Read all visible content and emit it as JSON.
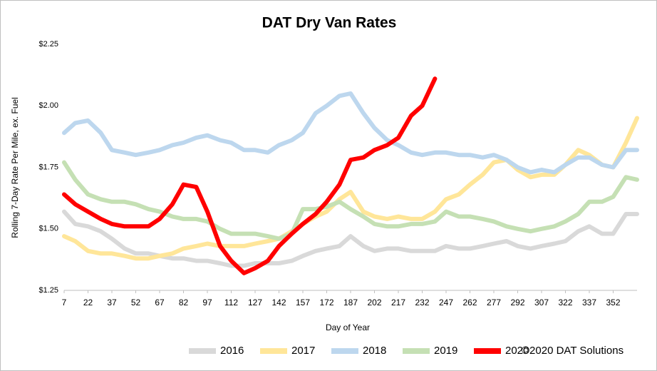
{
  "chart_data": {
    "type": "line",
    "title": "DAT Dry Van Rates",
    "x_label": "Day of Year",
    "y_label": "Rolling 7-Day Rate Per Mile, ex. Fuel",
    "copyright": "©2020 DAT Solutions",
    "xlim": [
      7,
      367
    ],
    "ylim": [
      1.25,
      2.25
    ],
    "xticks": [
      7,
      22,
      37,
      52,
      67,
      82,
      97,
      112,
      127,
      142,
      157,
      172,
      187,
      202,
      217,
      232,
      247,
      262,
      277,
      292,
      307,
      322,
      337,
      352
    ],
    "yticks": [
      {
        "value": 1.25,
        "label": "$1.25"
      },
      {
        "value": 1.5,
        "label": "$1.50"
      },
      {
        "value": 1.75,
        "label": "$1.75"
      },
      {
        "value": 2,
        "label": "$2.00"
      },
      {
        "value": 2.25,
        "label": "$2.25"
      }
    ],
    "grid": false,
    "x": [
      7,
      14,
      22,
      30,
      37,
      45,
      52,
      60,
      67,
      75,
      82,
      90,
      97,
      105,
      112,
      120,
      127,
      135,
      142,
      150,
      157,
      165,
      172,
      180,
      187,
      195,
      202,
      210,
      217,
      225,
      232,
      240,
      247,
      255,
      262,
      270,
      277,
      285,
      292,
      300,
      307,
      315,
      322,
      330,
      337,
      345,
      352,
      360,
      367
    ],
    "series": [
      {
        "name": "2016",
        "color": "#d9d9d9",
        "values": [
          1.57,
          1.52,
          1.51,
          1.49,
          1.46,
          1.42,
          1.4,
          1.4,
          1.39,
          1.38,
          1.38,
          1.37,
          1.37,
          1.36,
          1.35,
          1.35,
          1.36,
          1.36,
          1.36,
          1.37,
          1.39,
          1.41,
          1.42,
          1.43,
          1.47,
          1.43,
          1.41,
          1.42,
          1.42,
          1.41,
          1.41,
          1.41,
          1.43,
          1.42,
          1.42,
          1.43,
          1.44,
          1.45,
          1.43,
          1.42,
          1.43,
          1.44,
          1.45,
          1.49,
          1.51,
          1.48,
          1.48,
          1.56,
          1.56
        ]
      },
      {
        "name": "2017",
        "color": "#ffe699",
        "values": [
          1.47,
          1.45,
          1.41,
          1.4,
          1.4,
          1.39,
          1.38,
          1.38,
          1.39,
          1.4,
          1.42,
          1.43,
          1.44,
          1.43,
          1.43,
          1.43,
          1.44,
          1.45,
          1.46,
          1.49,
          1.52,
          1.55,
          1.57,
          1.62,
          1.65,
          1.57,
          1.55,
          1.54,
          1.55,
          1.54,
          1.54,
          1.57,
          1.62,
          1.64,
          1.68,
          1.72,
          1.77,
          1.78,
          1.74,
          1.71,
          1.72,
          1.72,
          1.76,
          1.82,
          1.8,
          1.76,
          1.75,
          1.85,
          1.95
        ]
      },
      {
        "name": "2018",
        "color": "#bdd7ee",
        "values": [
          1.89,
          1.93,
          1.94,
          1.89,
          1.82,
          1.81,
          1.8,
          1.81,
          1.82,
          1.84,
          1.85,
          1.87,
          1.88,
          1.86,
          1.85,
          1.82,
          1.82,
          1.81,
          1.84,
          1.86,
          1.89,
          1.97,
          2.0,
          2.04,
          2.05,
          1.97,
          1.91,
          1.86,
          1.84,
          1.81,
          1.8,
          1.81,
          1.81,
          1.8,
          1.8,
          1.79,
          1.8,
          1.78,
          1.75,
          1.73,
          1.74,
          1.73,
          1.76,
          1.79,
          1.79,
          1.76,
          1.75,
          1.82,
          1.82
        ]
      },
      {
        "name": "2019",
        "color": "#c5e0b4",
        "values": [
          1.77,
          1.7,
          1.64,
          1.62,
          1.61,
          1.61,
          1.6,
          1.58,
          1.57,
          1.55,
          1.54,
          1.54,
          1.53,
          1.5,
          1.48,
          1.48,
          1.48,
          1.47,
          1.46,
          1.48,
          1.58,
          1.58,
          1.59,
          1.61,
          1.58,
          1.55,
          1.52,
          1.51,
          1.51,
          1.52,
          1.52,
          1.53,
          1.57,
          1.55,
          1.55,
          1.54,
          1.53,
          1.51,
          1.5,
          1.49,
          1.5,
          1.51,
          1.53,
          1.56,
          1.61,
          1.61,
          1.63,
          1.71,
          1.7
        ]
      },
      {
        "name": "2020",
        "color": "#ff0000",
        "values": [
          1.64,
          1.6,
          1.57,
          1.54,
          1.52,
          1.51,
          1.51,
          1.51,
          1.54,
          1.6,
          1.68,
          1.67,
          1.57,
          1.43,
          1.37,
          1.32,
          1.34,
          1.37,
          1.43,
          1.48,
          1.52,
          1.56,
          1.61,
          1.68,
          1.78,
          1.79,
          1.82,
          1.84,
          1.87,
          1.96,
          2.0,
          2.11,
          null,
          null,
          null,
          null,
          null,
          null,
          null,
          null,
          null,
          null,
          null,
          null,
          null,
          null,
          null,
          null,
          null
        ]
      }
    ]
  }
}
